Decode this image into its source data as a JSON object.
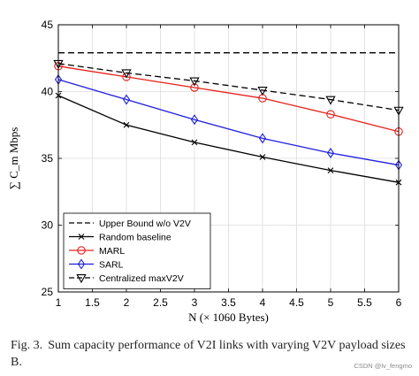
{
  "chart_data": {
    "type": "line",
    "xlabel": "N (× 1060 Bytes)",
    "ylabel": "∑ C_m Mbps",
    "xlim": [
      1,
      6
    ],
    "ylim": [
      25,
      45
    ],
    "xticks": [
      "1",
      "1.5",
      "2",
      "2.5",
      "3",
      "3.5",
      "4",
      "4.5",
      "5",
      "5.5",
      "6"
    ],
    "yticks": [
      "25",
      "30",
      "35",
      "40",
      "45"
    ],
    "grid": true,
    "legend_position": "bottom-left",
    "x": [
      1,
      2,
      3,
      4,
      5,
      6
    ],
    "series": [
      {
        "name": "Upper Bound w/o V2V",
        "values": [
          42.9,
          42.9,
          42.9,
          42.9,
          42.9,
          42.9
        ],
        "color": "#000000",
        "style": "dashed",
        "marker": "none"
      },
      {
        "name": "Random baseline",
        "values": [
          39.7,
          37.5,
          36.2,
          35.1,
          34.1,
          33.2
        ],
        "color": "#000000",
        "style": "solid",
        "marker": "x"
      },
      {
        "name": "MARL",
        "values": [
          41.9,
          41.1,
          40.3,
          39.5,
          38.3,
          37.0
        ],
        "color": "#e8211b",
        "style": "solid",
        "marker": "circle"
      },
      {
        "name": "SARL",
        "values": [
          40.9,
          39.4,
          37.9,
          36.5,
          35.4,
          34.5
        ],
        "color": "#1f1fe0",
        "style": "solid",
        "marker": "diamond"
      },
      {
        "name": "Centralized maxV2V",
        "values": [
          42.1,
          41.4,
          40.8,
          40.1,
          39.4,
          38.6
        ],
        "color": "#000000",
        "style": "dashed",
        "marker": "triangle-down"
      }
    ]
  },
  "caption": {
    "fig_number": "Fig. 3.",
    "text": "Sum capacity performance of V2I links with varying V2V payload sizes B."
  },
  "watermark": "CSDN @lv_fengmo"
}
